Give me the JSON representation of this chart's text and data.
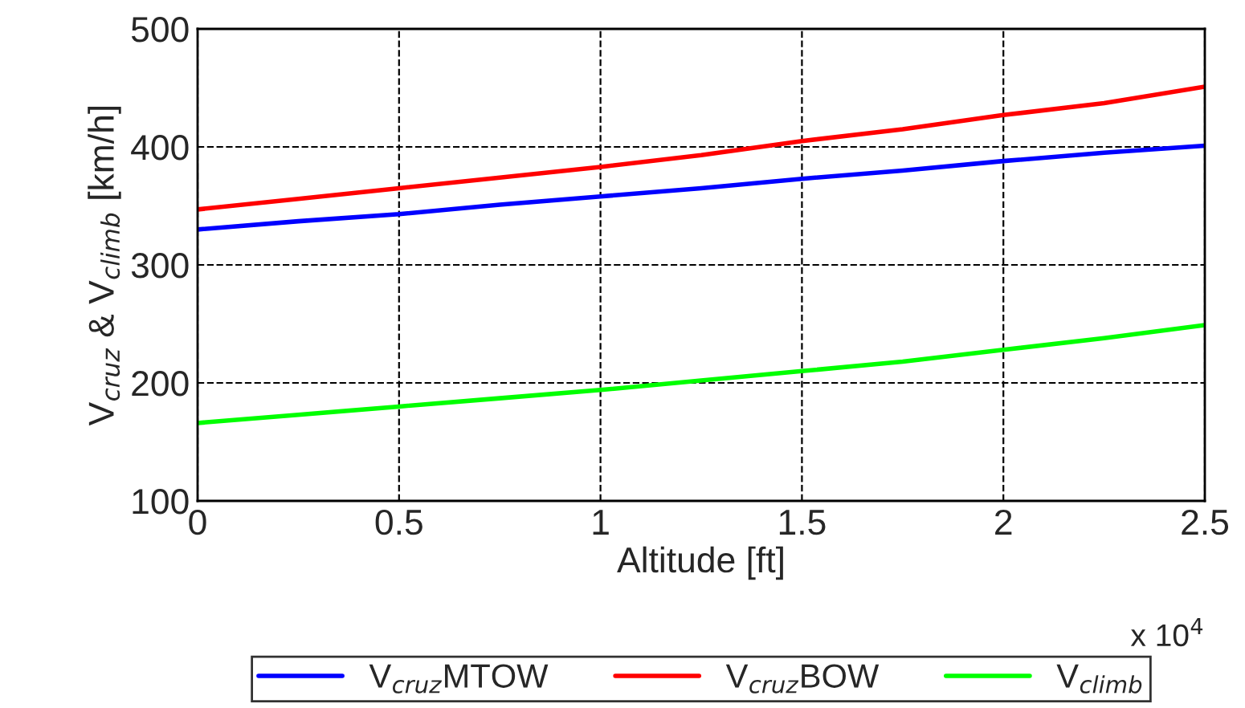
{
  "chart_data": {
    "type": "line",
    "xlabel": "Altitude [ft]",
    "ylabel": "V$_{cruz}$ & V$_{climb}$ [km/h]",
    "x": [
      0,
      0.25,
      0.5,
      0.75,
      1,
      1.25,
      1.5,
      1.75,
      2,
      2.25,
      2.5
    ],
    "series": [
      {
        "name": "V$_{cruz}$MTOW",
        "color": "#0000ff",
        "values": [
          330,
          337,
          343,
          351,
          358,
          365,
          373,
          380,
          388,
          395,
          401
        ]
      },
      {
        "name": "V$_{cruz}$BOW",
        "color": "#ff0000",
        "values": [
          347,
          356,
          365,
          374,
          383,
          393,
          405,
          415,
          427,
          437,
          451
        ]
      },
      {
        "name": "V$_{climb}$",
        "color": "#00ff00",
        "values": [
          166,
          173,
          180,
          187,
          194,
          202,
          210,
          218,
          228,
          238,
          249
        ]
      }
    ],
    "xlim": [
      0,
      2.5
    ],
    "xticks": [
      0,
      0.5,
      1,
      1.5,
      2,
      2.5
    ],
    "ylim": [
      100,
      500
    ],
    "yticks": [
      100,
      200,
      300,
      400,
      500
    ],
    "annotations": [
      "x 10$^{4}$"
    ],
    "grid": true,
    "legend": "bottom",
    "marker": "none",
    "line_style": "solid"
  }
}
